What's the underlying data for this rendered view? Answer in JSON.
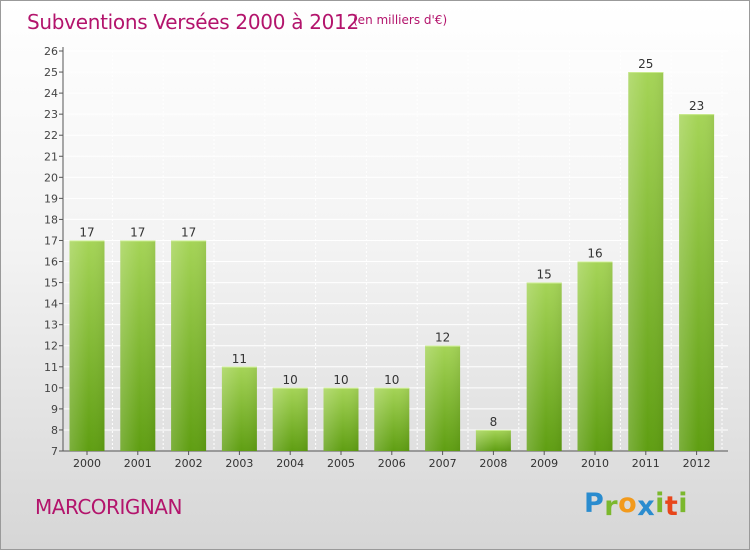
{
  "header": {
    "title": "Subventions Versées 2000 à 2012",
    "unit": "(en milliers d'€)"
  },
  "commune": "MARCORIGNAN",
  "logo": {
    "text": "Proxiti",
    "letters": [
      {
        "char": "P",
        "color": "#2a8ccf"
      },
      {
        "char": "r",
        "color": "#7bb82d"
      },
      {
        "char": "o",
        "color": "#f29a1c"
      },
      {
        "char": "x",
        "color": "#2a8ccf"
      },
      {
        "char": "i",
        "color": "#7bb82d"
      },
      {
        "char": "t",
        "color": "#e8461b"
      },
      {
        "char": "i",
        "color": "#7bb82d"
      }
    ]
  },
  "colors": {
    "title": "#b3146c",
    "bar_light": "#a5d457",
    "bar_dark": "#5f9e12",
    "grid": "#ffffff"
  },
  "chart_data": {
    "type": "bar",
    "categories": [
      "2000",
      "2001",
      "2002",
      "2003",
      "2004",
      "2005",
      "2006",
      "2007",
      "2008",
      "2009",
      "2010",
      "2011",
      "2012"
    ],
    "values": [
      17,
      17,
      17,
      11,
      10,
      10,
      10,
      12,
      8,
      15,
      16,
      25,
      23
    ],
    "ylim": [
      7,
      26
    ],
    "yticks": [
      "7",
      "8",
      "9",
      "10",
      "11",
      "12",
      "13",
      "14",
      "15",
      "16",
      "17",
      "18",
      "19",
      "20",
      "21",
      "22",
      "23",
      "24",
      "25",
      "26"
    ],
    "grid": true,
    "legend": "none"
  }
}
